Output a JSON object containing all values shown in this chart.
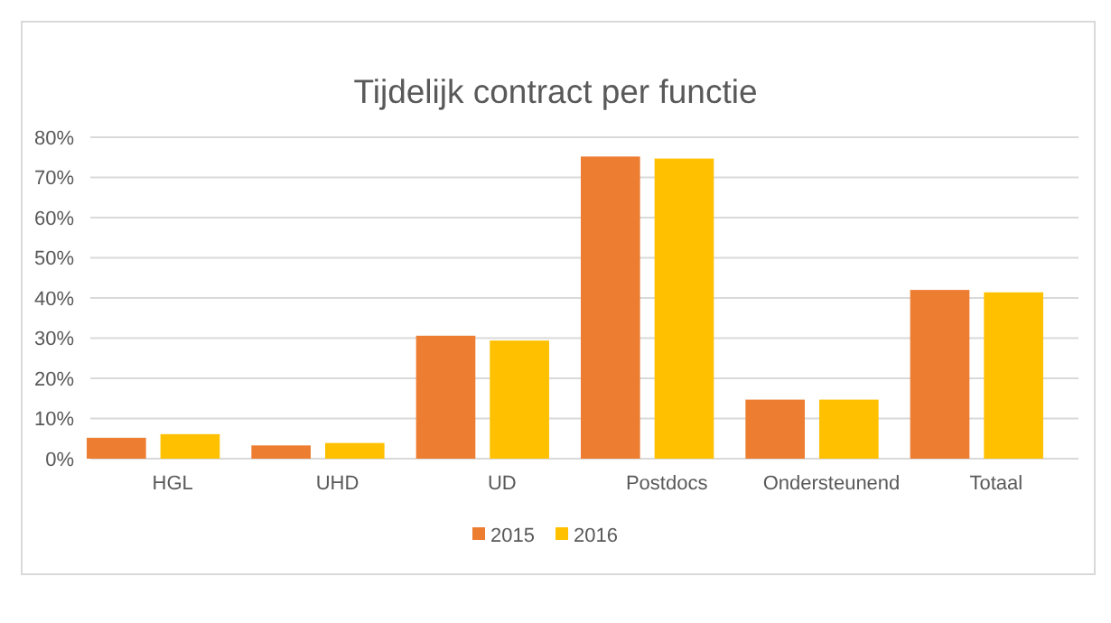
{
  "chart_data": {
    "type": "bar",
    "title": "Tijdelijk contract per functie",
    "categories": [
      "HGL",
      "UHD",
      "UD",
      "Postdocs",
      "Ondersteunend",
      "Totaal"
    ],
    "series": [
      {
        "name": "2015",
        "color": "#ed7d31",
        "values": [
          5.2,
          3.3,
          30.6,
          75.2,
          14.7,
          42.0
        ]
      },
      {
        "name": "2016",
        "color": "#ffc000",
        "values": [
          6.1,
          3.9,
          29.4,
          74.7,
          14.7,
          41.4
        ]
      }
    ],
    "ylim": [
      0,
      80
    ],
    "yticks": [
      {
        "value": 0,
        "label": "0%"
      },
      {
        "value": 10,
        "label": "10%"
      },
      {
        "value": 20,
        "label": "20%"
      },
      {
        "value": 30,
        "label": "30%"
      },
      {
        "value": 40,
        "label": "40%"
      },
      {
        "value": 50,
        "label": "50%"
      },
      {
        "value": 60,
        "label": "60%"
      },
      {
        "value": 70,
        "label": "70%"
      },
      {
        "value": 80,
        "label": "80%"
      }
    ],
    "grid": "y",
    "legend": "bottom"
  }
}
